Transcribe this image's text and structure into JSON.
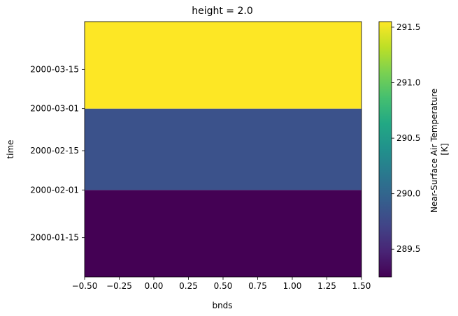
{
  "chart_data": {
    "type": "heatmap",
    "title": "height = 2.0",
    "xlabel": "bnds",
    "ylabel": "time",
    "xlim": [
      -0.5,
      1.5
    ],
    "x_ticks": [
      "−0.50",
      "−0.25",
      "0.00",
      "0.25",
      "0.50",
      "0.75",
      "1.00",
      "1.25",
      "1.50"
    ],
    "y_ticks": [
      "2000-01-15",
      "2000-02-01",
      "2000-02-15",
      "2000-03-01",
      "2000-03-15"
    ],
    "colormap": "viridis",
    "cells": [
      {
        "time_start": "2000-01-01",
        "time_end": "2000-02-01",
        "value": 289.25,
        "color": "#440154"
      },
      {
        "time_start": "2000-02-01",
        "time_end": "2000-03-01",
        "value": 289.97,
        "color": "#3b528b"
      },
      {
        "time_start": "2000-03-01",
        "time_end": "2000-04-01",
        "value": 291.55,
        "color": "#fde725"
      }
    ],
    "colorbar": {
      "label_line1": "Near-Surface Air Temperature",
      "label_line2": "[K]",
      "range": [
        289.25,
        291.55
      ],
      "ticks": [
        "289.5",
        "290.0",
        "290.5",
        "291.0",
        "291.5"
      ]
    }
  }
}
